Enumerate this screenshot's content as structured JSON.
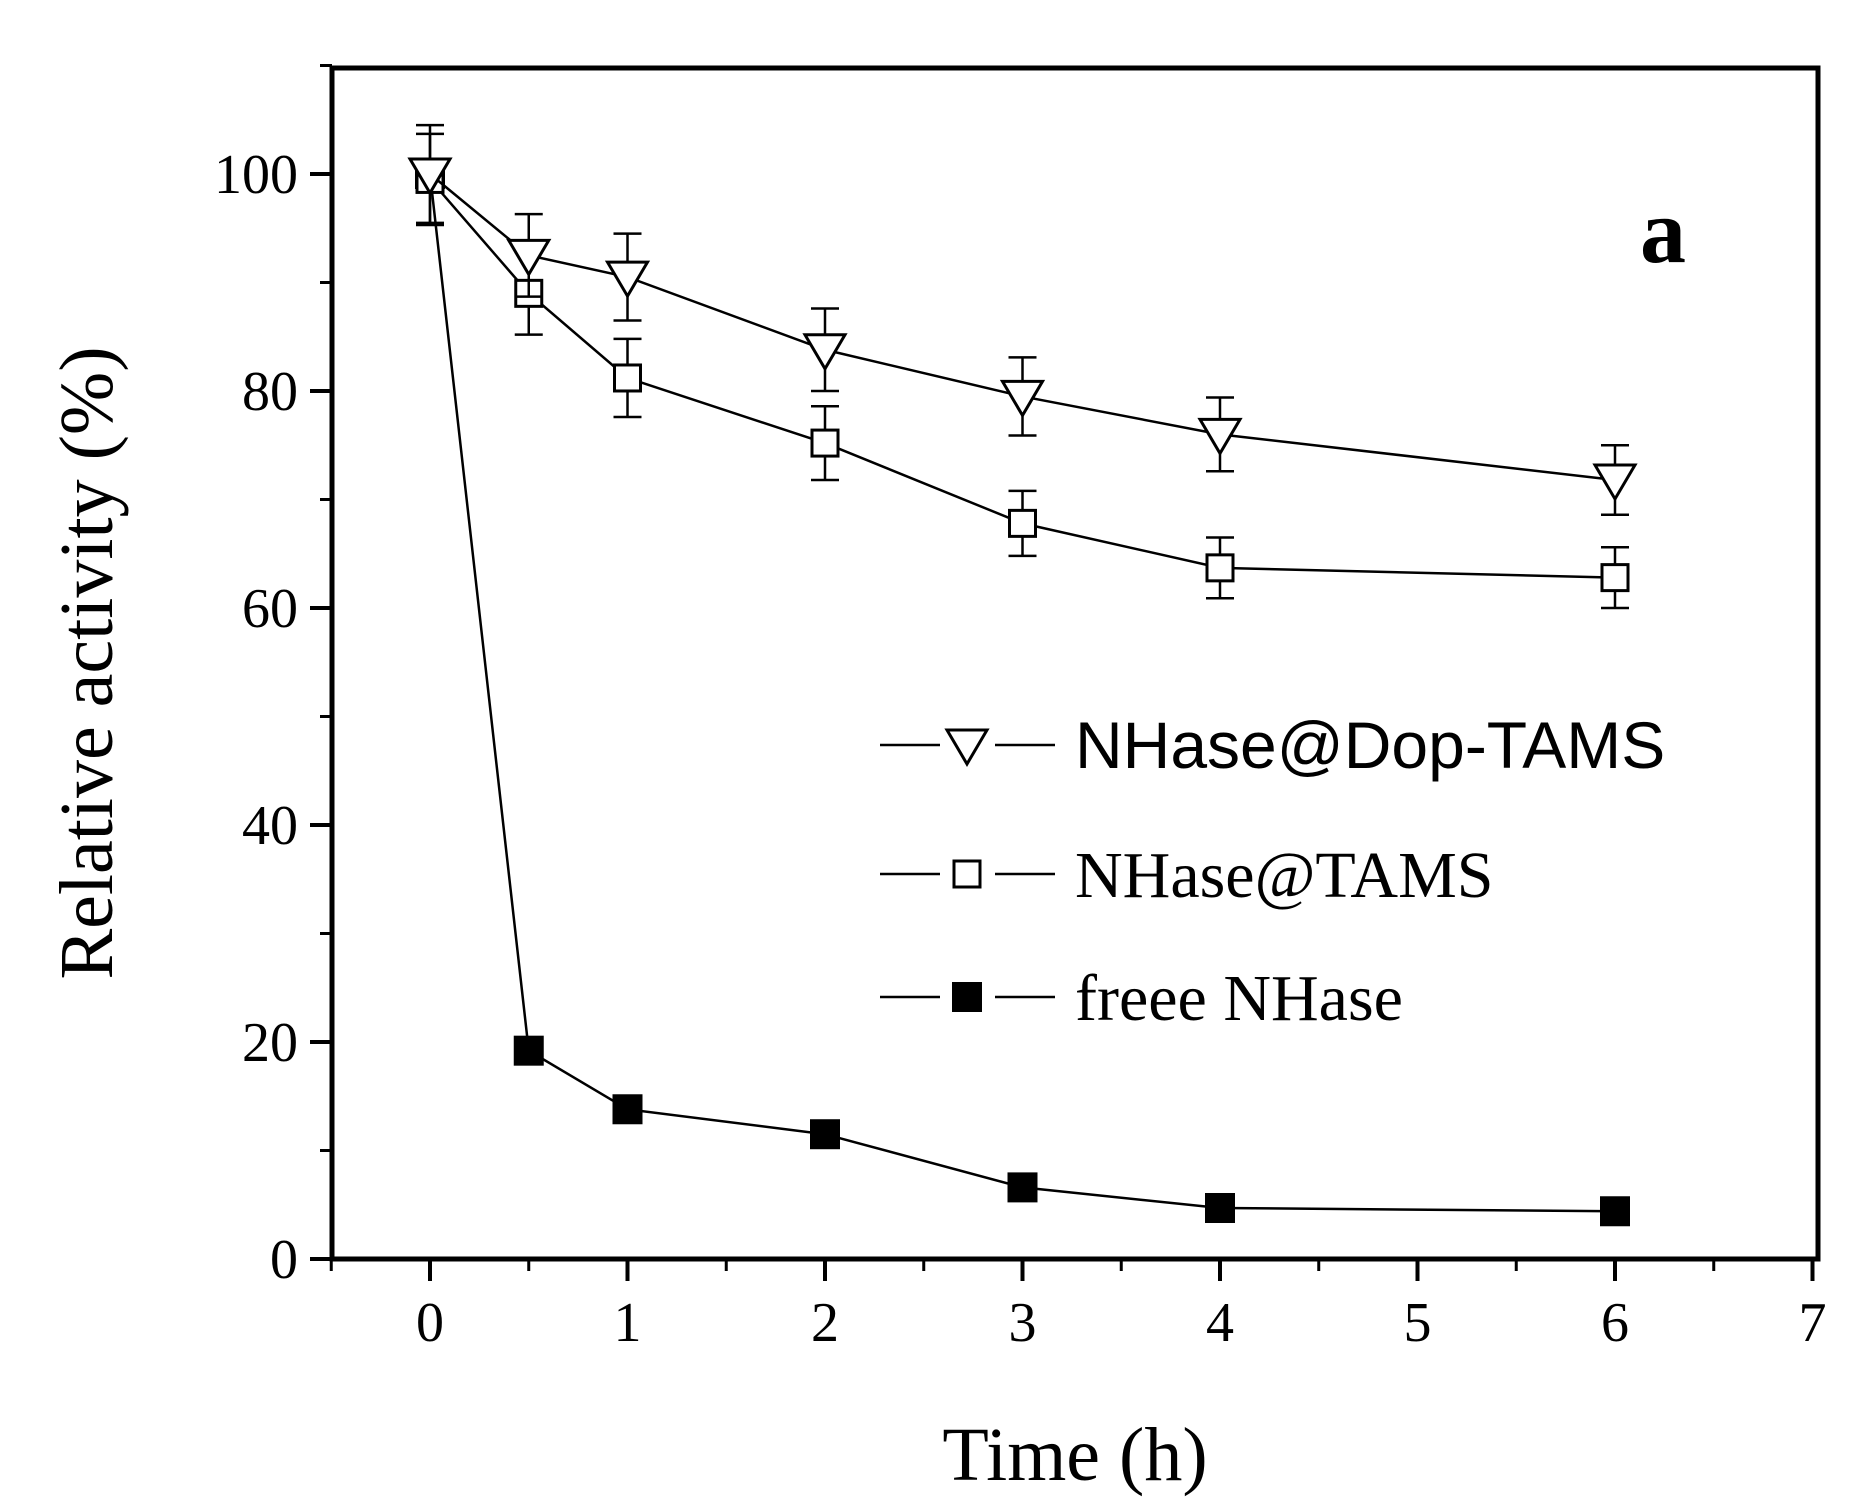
{
  "chart_data": {
    "type": "line",
    "title": "",
    "panel_label": "a",
    "xlabel": "Time (h)",
    "ylabel": "Relative activity (%)",
    "xlim": [
      -0.5,
      7
    ],
    "ylim": [
      0,
      110
    ],
    "x_ticks": [
      0,
      1,
      2,
      3,
      4,
      5,
      6,
      7
    ],
    "y_ticks": [
      0,
      20,
      40,
      60,
      80,
      100
    ],
    "grid": false,
    "legend_position": "center-right",
    "series": [
      {
        "name": "NHase@Dop-TAMS",
        "marker": "triangle-down-open",
        "x": [
          0,
          0.5,
          1,
          2,
          3,
          4,
          6
        ],
        "y": [
          100,
          92.5,
          90.5,
          83.8,
          79.5,
          76,
          71.8
        ],
        "err": [
          4.5,
          3.8,
          4.0,
          3.8,
          3.6,
          3.4,
          3.2
        ]
      },
      {
        "name": "NHase@TAMS",
        "marker": "square-open",
        "x": [
          0,
          0.5,
          1,
          2,
          3,
          4,
          6
        ],
        "y": [
          99.5,
          89,
          81.2,
          75.2,
          67.8,
          63.7,
          62.8
        ],
        "err": [
          4.2,
          3.8,
          3.6,
          3.4,
          3.0,
          2.8,
          2.8
        ]
      },
      {
        "name": "freee NHase",
        "marker": "square-filled",
        "x": [
          0,
          0.5,
          1,
          2,
          3,
          4,
          6
        ],
        "y": [
          100,
          19.2,
          13.8,
          11.5,
          6.6,
          4.7,
          4.4
        ],
        "err": [
          0,
          0,
          0,
          0,
          0,
          0,
          0
        ]
      }
    ]
  }
}
